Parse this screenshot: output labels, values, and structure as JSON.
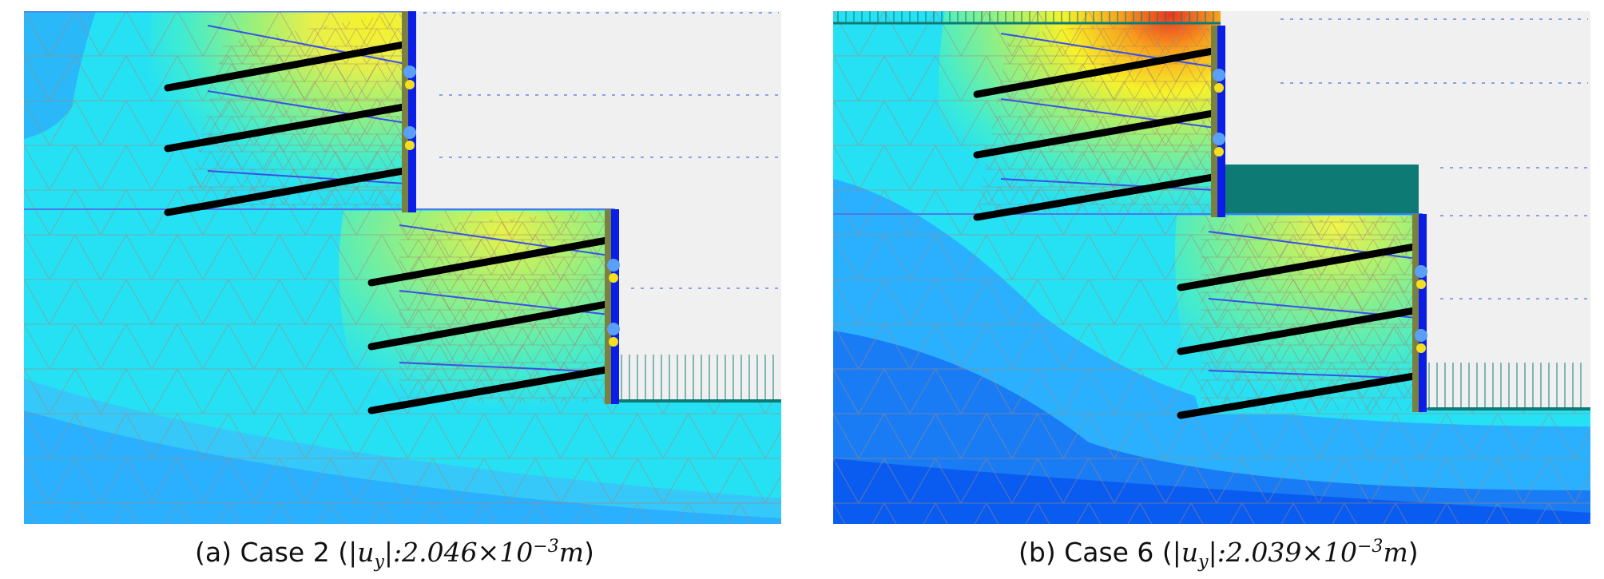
{
  "panels": [
    {
      "caption_prefix": "(a) Case 2 (",
      "uy_symbol": "|u",
      "uy_sub": "y",
      "uy_close": "|:",
      "value_mantissa": "2.046",
      "value_times": "×10",
      "value_exp": "−3",
      "value_unit": "m",
      "caption_suffix": ")"
    },
    {
      "caption_prefix": "(b) Case 6 (",
      "uy_symbol": "|u",
      "uy_sub": "y",
      "uy_close": "|:",
      "value_mantissa": "2.039",
      "value_times": "×10",
      "value_exp": "−3",
      "value_unit": "m",
      "caption_suffix": ")"
    }
  ],
  "colors": {
    "light_blue": "#26e0f4",
    "mid_blue": "#2ab0ff",
    "deep_blue": "#0a5cf0",
    "green": "#7ef07a",
    "yellow": "#f6f22a",
    "orange": "#f8a41c",
    "red": "#f2321c",
    "wall": "#0b1ee8",
    "anchor": "#000000",
    "load": "#0e7a74",
    "excavated": "#f0f0f0",
    "mesh": "#a08878"
  }
}
